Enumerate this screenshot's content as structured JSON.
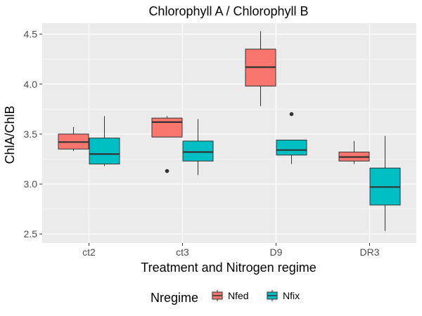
{
  "chart_data": {
    "type": "box",
    "title": "Chlorophyll A / Chlorophyll B",
    "xlabel": "Treatment and Nitrogen regime",
    "ylabel": "ChlA/ChlB",
    "categories": [
      "ct2",
      "ct3",
      "D9",
      "DR3"
    ],
    "ylim": [
      2.41,
      4.61
    ],
    "yticks": [
      2.5,
      3.0,
      3.5,
      4.0,
      4.5
    ],
    "ytick_labels": [
      "2.5",
      "3.0",
      "3.5",
      "4.0",
      "4.5"
    ],
    "grid": true,
    "legend": {
      "title": "Nregime",
      "position": "bottom"
    },
    "series": [
      {
        "name": "Nfed",
        "color": "#F8766D",
        "boxes": [
          {
            "category": "ct2",
            "whisker_low": 3.33,
            "q1": 3.35,
            "median": 3.42,
            "q3": 3.5,
            "whisker_high": 3.57,
            "outliers": []
          },
          {
            "category": "ct3",
            "whisker_low": 3.47,
            "q1": 3.47,
            "median": 3.62,
            "q3": 3.66,
            "whisker_high": 3.68,
            "outliers": [
              3.13
            ]
          },
          {
            "category": "D9",
            "whisker_low": 3.78,
            "q1": 3.98,
            "median": 4.17,
            "q3": 4.35,
            "whisker_high": 4.53,
            "outliers": []
          },
          {
            "category": "DR3",
            "whisker_low": 3.2,
            "q1": 3.23,
            "median": 3.27,
            "q3": 3.32,
            "whisker_high": 3.43,
            "outliers": []
          }
        ]
      },
      {
        "name": "Nfix",
        "color": "#00BFC4",
        "boxes": [
          {
            "category": "ct2",
            "whisker_low": 3.18,
            "q1": 3.2,
            "median": 3.3,
            "q3": 3.46,
            "whisker_high": 3.68,
            "outliers": []
          },
          {
            "category": "ct3",
            "whisker_low": 3.09,
            "q1": 3.23,
            "median": 3.32,
            "q3": 3.43,
            "whisker_high": 3.65,
            "outliers": []
          },
          {
            "category": "D9",
            "whisker_low": 3.2,
            "q1": 3.29,
            "median": 3.34,
            "q3": 3.44,
            "whisker_high": 3.44,
            "outliers": [
              3.7
            ]
          },
          {
            "category": "DR3",
            "whisker_low": 2.53,
            "q1": 2.79,
            "median": 2.97,
            "q3": 3.16,
            "whisker_high": 3.48,
            "outliers": []
          }
        ]
      }
    ]
  }
}
